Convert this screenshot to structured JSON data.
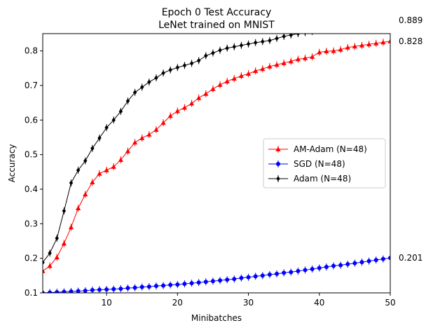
{
  "chart_data": {
    "type": "line",
    "title": "Epoch 0 Test Accuracy",
    "subtitle": "LeNet trained on MNIST",
    "xlabel": "Minibatches",
    "ylabel": "Accuracy",
    "xlim": [
      1,
      50
    ],
    "ylim": [
      0.1,
      0.85
    ],
    "xticks": [
      10,
      20,
      30,
      40,
      50
    ],
    "yticks": [
      0.1,
      0.2,
      0.3,
      0.4,
      0.5,
      0.6,
      0.7,
      0.8
    ],
    "xtick_labels": [
      "10",
      "20",
      "30",
      "40",
      "50"
    ],
    "ytick_labels": [
      "0.1",
      "0.2",
      "0.3",
      "0.4",
      "0.5",
      "0.6",
      "0.7",
      "0.8"
    ],
    "grid": false,
    "legend_position": "center-right",
    "annotations": [
      {
        "text": "0.889",
        "y": 0.889
      },
      {
        "text": "0.828",
        "y": 0.828
      },
      {
        "text": "0.201",
        "y": 0.201
      }
    ],
    "x": [
      1,
      2,
      3,
      4,
      5,
      6,
      7,
      8,
      9,
      10,
      11,
      12,
      13,
      14,
      15,
      16,
      17,
      18,
      19,
      20,
      21,
      22,
      23,
      24,
      25,
      26,
      27,
      28,
      29,
      30,
      31,
      32,
      33,
      34,
      35,
      36,
      37,
      38,
      39,
      40,
      41,
      42,
      43,
      44,
      45,
      46,
      47,
      48,
      49,
      50
    ],
    "series": [
      {
        "name": "AM-Adam (N=48)",
        "color": "#ff0000",
        "marker": "triangle",
        "values": [
          0.163,
          0.178,
          0.203,
          0.243,
          0.29,
          0.345,
          0.385,
          0.42,
          0.445,
          0.455,
          0.465,
          0.485,
          0.51,
          0.535,
          0.548,
          0.558,
          0.572,
          0.592,
          0.612,
          0.626,
          0.636,
          0.648,
          0.664,
          0.676,
          0.69,
          0.702,
          0.712,
          0.72,
          0.728,
          0.734,
          0.742,
          0.748,
          0.755,
          0.76,
          0.765,
          0.77,
          0.776,
          0.779,
          0.783,
          0.796,
          0.799,
          0.8,
          0.804,
          0.81,
          0.813,
          0.816,
          0.819,
          0.822,
          0.825,
          0.828
        ]
      },
      {
        "name": "SGD (N=48)",
        "color": "#0000ff",
        "marker": "circle",
        "values": [
          0.1,
          0.101,
          0.102,
          0.103,
          0.104,
          0.105,
          0.106,
          0.108,
          0.109,
          0.11,
          0.111,
          0.112,
          0.114,
          0.115,
          0.117,
          0.118,
          0.12,
          0.121,
          0.123,
          0.124,
          0.126,
          0.128,
          0.13,
          0.132,
          0.134,
          0.136,
          0.138,
          0.14,
          0.143,
          0.145,
          0.148,
          0.15,
          0.153,
          0.155,
          0.158,
          0.16,
          0.163,
          0.166,
          0.169,
          0.172,
          0.175,
          0.178,
          0.18,
          0.183,
          0.186,
          0.189,
          0.192,
          0.195,
          0.198,
          0.201
        ]
      },
      {
        "name": "Adam (N=48)",
        "color": "#000000",
        "marker": "diamond",
        "values": [
          0.188,
          0.215,
          0.258,
          0.337,
          0.418,
          0.455,
          0.482,
          0.518,
          0.548,
          0.578,
          0.6,
          0.625,
          0.655,
          0.68,
          0.695,
          0.71,
          0.722,
          0.736,
          0.745,
          0.752,
          0.758,
          0.764,
          0.772,
          0.786,
          0.794,
          0.802,
          0.808,
          0.812,
          0.816,
          0.82,
          0.824,
          0.827,
          0.83,
          0.836,
          0.842,
          0.846,
          0.85,
          0.853,
          0.856,
          0.859,
          0.862,
          0.865,
          0.868,
          0.871,
          0.874,
          0.877,
          0.88,
          0.883,
          0.886,
          0.889
        ]
      }
    ]
  }
}
